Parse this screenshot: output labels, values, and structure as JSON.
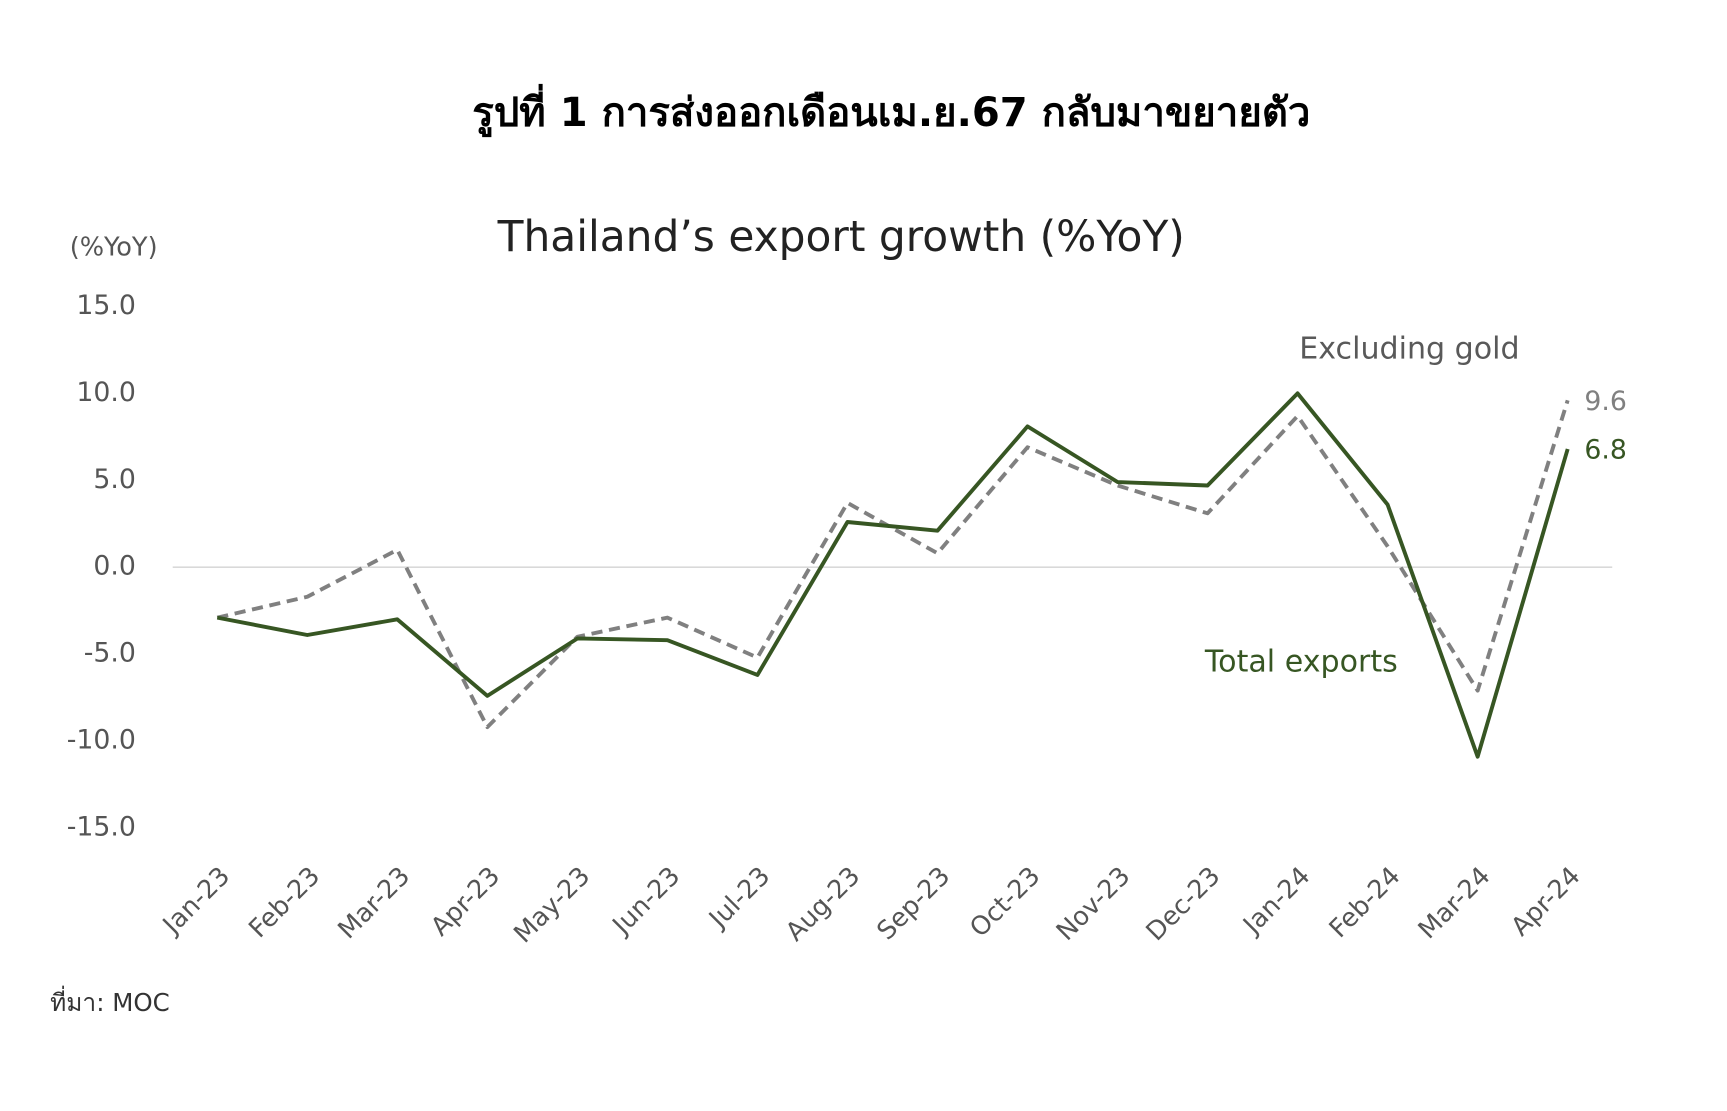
{
  "chart_data": {
    "type": "line",
    "title": "รูปที่ 1 การส่งออกเดือนเม.ย.67 กลับมาขยายตัว",
    "subtitle": "Thailand’s export growth (%YoY)",
    "y_label": "(%YoY)",
    "source": "ที่มา: MOC",
    "categories": [
      "Jan-23",
      "Feb-23",
      "Mar-23",
      "Apr-23",
      "May-23",
      "Jun-23",
      "Jul-23",
      "Aug-23",
      "Sep-23",
      "Oct-23",
      "Nov-23",
      "Dec-23",
      "Jan-24",
      "Feb-24",
      "Mar-24",
      "Apr-24"
    ],
    "series": [
      {
        "name": "Excluding gold",
        "color": "#808080",
        "dashed": true,
        "values": [
          -2.9,
          -1.7,
          1.0,
          -9.2,
          -4.0,
          -2.9,
          -5.2,
          3.7,
          0.8,
          6.9,
          4.7,
          3.1,
          8.7,
          1.2,
          -7.1,
          9.6
        ]
      },
      {
        "name": "Total exports",
        "color": "#375623",
        "dashed": false,
        "values": [
          -2.9,
          -3.9,
          -3.0,
          -7.4,
          -4.1,
          -4.2,
          -6.2,
          2.6,
          2.1,
          8.1,
          4.9,
          4.7,
          10.0,
          3.6,
          -10.9,
          6.8
        ]
      }
    ],
    "ylim": [
      -15,
      15
    ],
    "yticks": [
      {
        "value": 15,
        "label": "15.0"
      },
      {
        "value": 10,
        "label": "10.0"
      },
      {
        "value": 5,
        "label": "5.0"
      },
      {
        "value": 0,
        "label": "0.0"
      },
      {
        "value": -5,
        "label": "-5.0"
      },
      {
        "value": -10,
        "label": "-10.0"
      },
      {
        "value": -15,
        "label": "-15.0"
      }
    ]
  }
}
